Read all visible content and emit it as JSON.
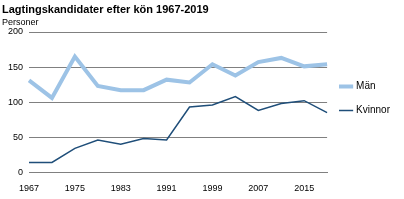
{
  "chart_data": {
    "type": "line",
    "title": "Lagtingskandidater efter kön 1967-2019",
    "y_label": "Personer",
    "categories": [
      "1967",
      null,
      "1975",
      null,
      "1983",
      null,
      "1991",
      null,
      "1999",
      null,
      "2007",
      null,
      "2015",
      null
    ],
    "series": [
      {
        "name": "Män",
        "color": "#9dc3e6",
        "values": [
          131,
          106,
          165,
          123,
          117,
          117,
          132,
          128,
          154,
          138,
          157,
          163,
          151,
          154
        ]
      },
      {
        "name": "Kvinnor",
        "color": "#1f4e79",
        "values": [
          14,
          14,
          34,
          46,
          40,
          48,
          46,
          93,
          96,
          108,
          88,
          98,
          102,
          85
        ]
      }
    ],
    "ylim": [
      0,
      200
    ],
    "yticks": [
      0,
      50,
      100,
      150,
      200
    ],
    "grid": true,
    "legend": "right"
  }
}
